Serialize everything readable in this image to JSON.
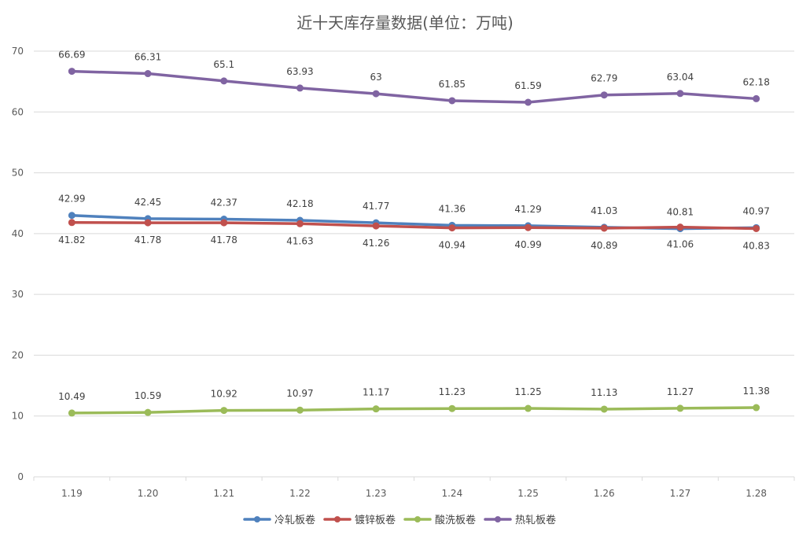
{
  "chart_data": {
    "type": "line",
    "title": "近十天库存量数据(单位：万吨)",
    "xlabel": "",
    "ylabel": "",
    "categories": [
      "1.19",
      "1.20",
      "1.21",
      "1.22",
      "1.23",
      "1.24",
      "1.25",
      "1.26",
      "1.27",
      "1.28"
    ],
    "ylim": [
      0,
      70
    ],
    "yticks": [
      0,
      10,
      20,
      30,
      40,
      50,
      60,
      70
    ],
    "grid": true,
    "legend_position": "bottom",
    "series": [
      {
        "name": "冷轧板卷",
        "color": "#4f81bd",
        "values": [
          42.99,
          42.45,
          42.37,
          42.18,
          41.77,
          41.36,
          41.29,
          41.03,
          40.81,
          40.97
        ],
        "label_position": "above"
      },
      {
        "name": "镀锌板卷",
        "color": "#c0504d",
        "values": [
          41.82,
          41.78,
          41.78,
          41.63,
          41.26,
          40.94,
          40.99,
          40.89,
          41.06,
          40.83
        ],
        "label_position": "below"
      },
      {
        "name": "酸洗板卷",
        "color": "#9bbb59",
        "values": [
          10.49,
          10.59,
          10.92,
          10.97,
          11.17,
          11.23,
          11.25,
          11.13,
          11.27,
          11.38
        ],
        "label_position": "above"
      },
      {
        "name": "热轧板卷",
        "color": "#8064a2",
        "values": [
          66.69,
          66.31,
          65.1,
          63.93,
          63,
          61.85,
          61.59,
          62.79,
          63.04,
          62.18
        ],
        "label_position": "above"
      }
    ]
  }
}
